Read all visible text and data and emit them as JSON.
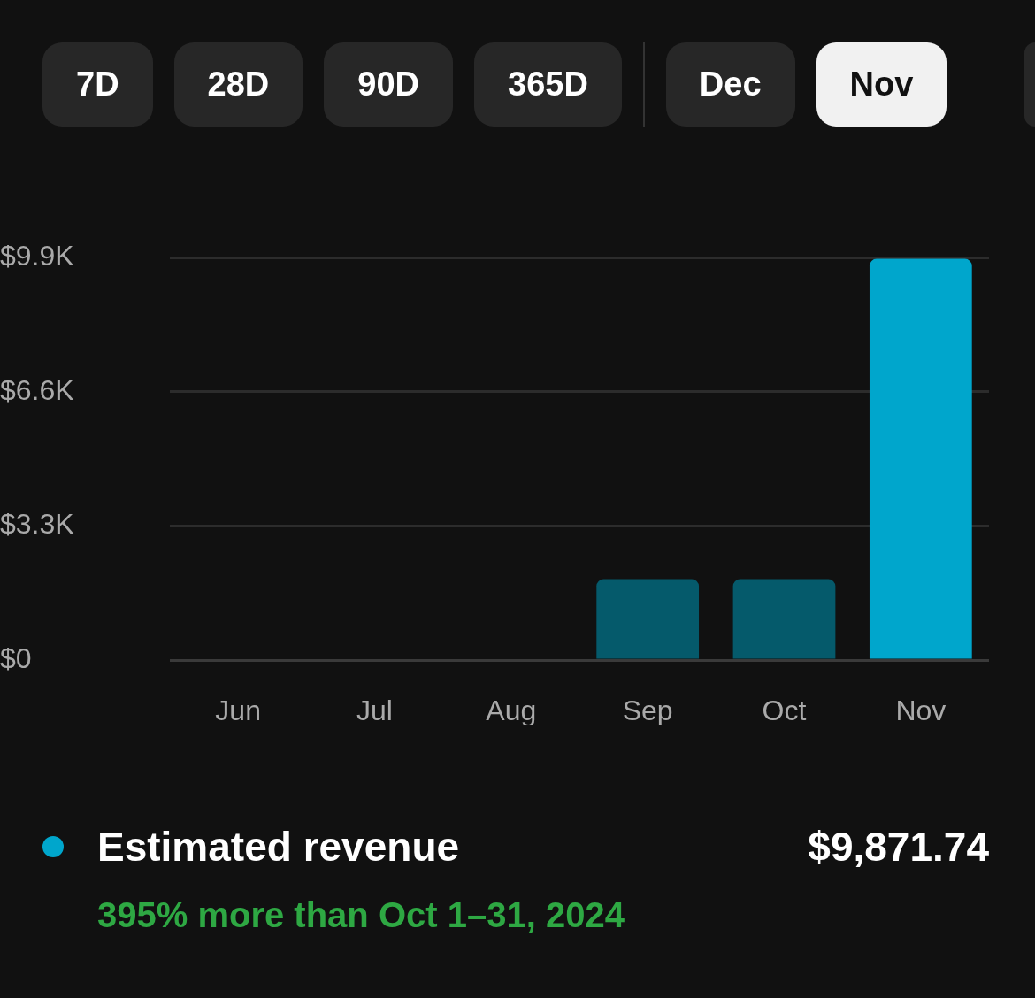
{
  "chart_data": {
    "type": "bar",
    "categories": [
      "Jun",
      "Jul",
      "Aug",
      "Sep",
      "Oct",
      "Nov"
    ],
    "series": [
      {
        "name": "Estimated revenue",
        "color": "#00a6cc",
        "colors": [
          "#055a6b",
          "#055a6b",
          "#055a6b",
          "#055a6b",
          "#055a6b",
          "#00a6cc"
        ],
        "values": [
          0,
          0,
          0,
          1990,
          1990,
          9870
        ]
      }
    ],
    "ylim": [
      0,
      9900
    ],
    "yticks": [
      {
        "value": 0,
        "label": "$0"
      },
      {
        "value": 3300,
        "label": "$3.3K"
      },
      {
        "value": 6600,
        "label": "$6.6K"
      },
      {
        "value": 9900,
        "label": "$9.9K"
      }
    ],
    "grid": "y",
    "legend": "bottom",
    "annotations": [
      "7D",
      "28D",
      "90D",
      "365D",
      "Dec",
      "Nov",
      "$9,871.74",
      "395% more than Oct 1–31, 2024"
    ]
  }
}
